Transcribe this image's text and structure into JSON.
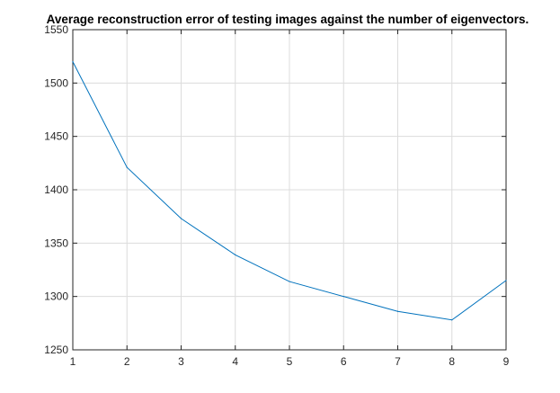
{
  "chart_data": {
    "type": "line",
    "title": "Average reconstruction error of testing images against the number of eigenvectors.",
    "xlabel": "",
    "ylabel": "",
    "xlim": [
      1,
      9
    ],
    "ylim": [
      1250,
      1550
    ],
    "x_ticks": [
      1,
      2,
      3,
      4,
      5,
      6,
      7,
      8,
      9
    ],
    "y_ticks": [
      1250,
      1300,
      1350,
      1400,
      1450,
      1500,
      1550
    ],
    "grid": true,
    "series": [
      {
        "x": [
          1,
          2,
          3,
          4,
          5,
          6,
          7,
          8,
          9
        ],
        "values": [
          1520,
          1421,
          1373,
          1339,
          1314,
          1300,
          1286,
          1278,
          1315
        ],
        "color": "#0072BD"
      }
    ]
  }
}
